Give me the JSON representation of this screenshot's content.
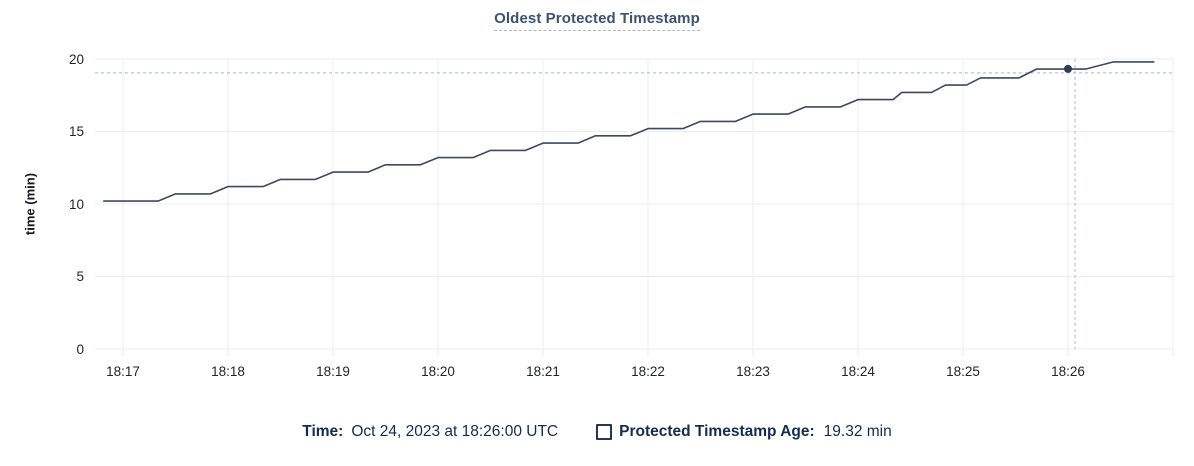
{
  "chart_data": {
    "type": "line",
    "title": "Oldest Protected Timestamp",
    "ylabel": "time (min)",
    "xlabel": "",
    "ylim": [
      0,
      20
    ],
    "y_ticks": [
      0,
      5,
      10,
      15,
      20
    ],
    "x_ticks": [
      "18:17",
      "18:18",
      "18:19",
      "18:20",
      "18:21",
      "18:22",
      "18:23",
      "18:24",
      "18:25",
      "18:26"
    ],
    "grid": true,
    "legend_position": "bottom",
    "series": [
      {
        "name": "Protected Timestamp Age",
        "unit": "min",
        "points": [
          [
            -11,
            10.2
          ],
          [
            20,
            10.2
          ],
          [
            30,
            10.7
          ],
          [
            50,
            10.7
          ],
          [
            60,
            11.2
          ],
          [
            80,
            11.2
          ],
          [
            90,
            11.7
          ],
          [
            110,
            11.7
          ],
          [
            120,
            12.2
          ],
          [
            140,
            12.2
          ],
          [
            150,
            12.7
          ],
          [
            170,
            12.7
          ],
          [
            180,
            13.2
          ],
          [
            200,
            13.2
          ],
          [
            210,
            13.7
          ],
          [
            230,
            13.7
          ],
          [
            240,
            14.2
          ],
          [
            260,
            14.2
          ],
          [
            270,
            14.7
          ],
          [
            290,
            14.7
          ],
          [
            300,
            15.2
          ],
          [
            320,
            15.2
          ],
          [
            330,
            15.7
          ],
          [
            350,
            15.7
          ],
          [
            360,
            16.2
          ],
          [
            380,
            16.2
          ],
          [
            390,
            16.7
          ],
          [
            410,
            16.7
          ],
          [
            420,
            17.2
          ],
          [
            440,
            17.2
          ],
          [
            445,
            17.7
          ],
          [
            462,
            17.7
          ],
          [
            470,
            18.2
          ],
          [
            482,
            18.2
          ],
          [
            490,
            18.7
          ],
          [
            512,
            18.7
          ],
          [
            522,
            19.3
          ],
          [
            550,
            19.3
          ],
          [
            566,
            19.8
          ],
          [
            589,
            19.8
          ]
        ]
      }
    ],
    "hover": {
      "t_sec": 540,
      "time": "18:26:00",
      "value": 19.32
    }
  },
  "legend": {
    "time_label": "Time:",
    "time_value": "Oct 24, 2023 at 18:26:00 UTC",
    "series_label": "Protected Timestamp Age:",
    "series_value": "19.32 min"
  },
  "colors": {
    "title": "#3c5270",
    "legend_text": "#132c4f",
    "line": "#3d4960",
    "dot": "#2f3e55",
    "grid": "#ececec",
    "crosshair": "#a3bac6",
    "tick_text": "#222629"
  }
}
